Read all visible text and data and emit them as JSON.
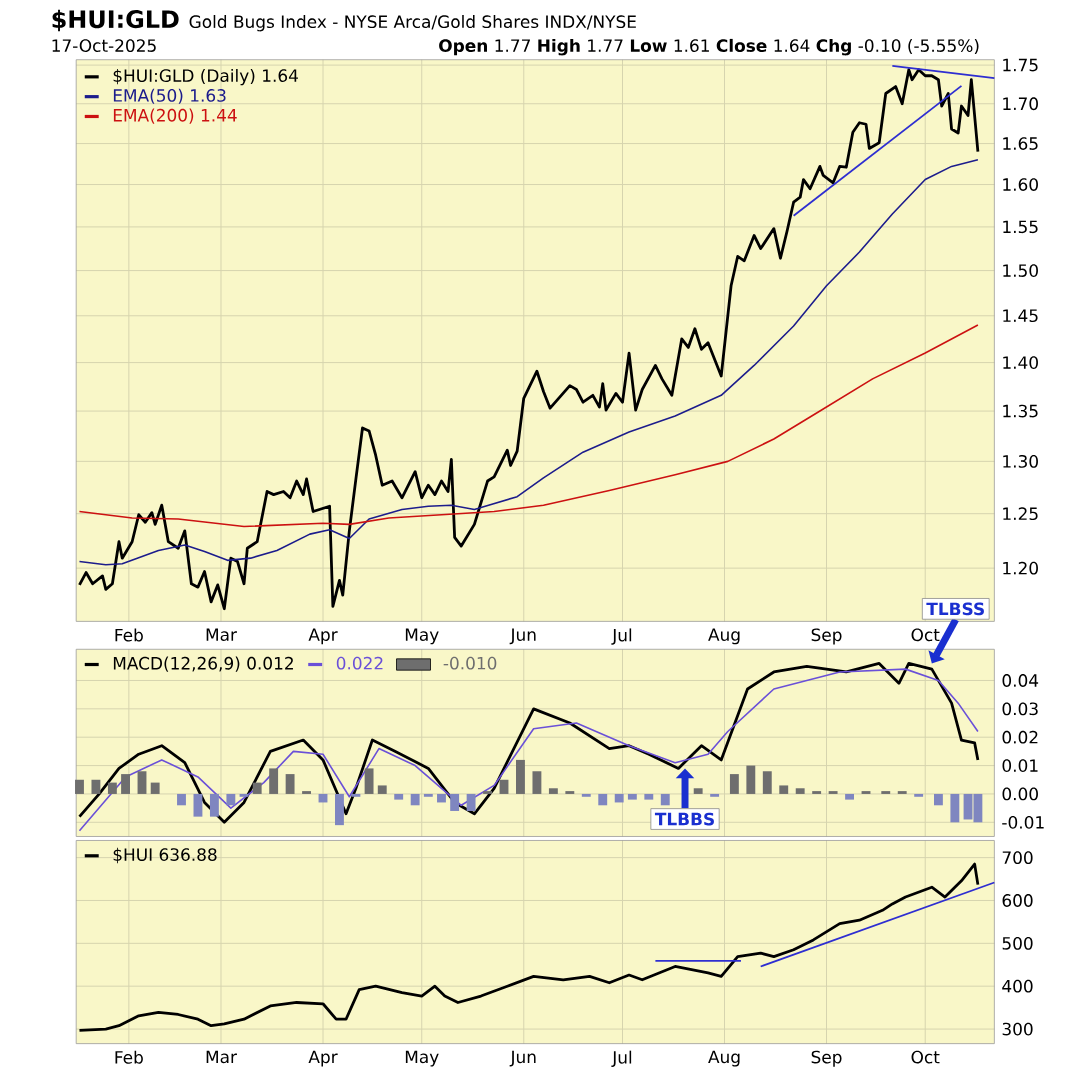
{
  "chart_data": [
    {
      "type": "line",
      "title": "$HUI:GLD",
      "subtitle": "Gold Bugs Index - NYSE Arca/Gold Shares  INDX/NYSE",
      "annotations": [
        "17-Oct-2025",
        "**Open** 1.77  **High** 1.77  **Low** 1.61  **Close** 1.64  **Chg** -0.10 (-5.55%)"
      ],
      "xlim": [
        "2025-01-16",
        "2025-10-22"
      ],
      "xticks": [
        {
          "value": "2025-02-01",
          "label": "Feb"
        },
        {
          "value": "2025-03-01",
          "label": "Mar"
        },
        {
          "value": "2025-04-01",
          "label": "Apr"
        },
        {
          "value": "2025-05-01",
          "label": "May"
        },
        {
          "value": "2025-06-01",
          "label": "Jun"
        },
        {
          "value": "2025-07-01",
          "label": "Jul"
        },
        {
          "value": "2025-08-01",
          "label": "Aug"
        },
        {
          "value": "2025-09-01",
          "label": "Sep"
        },
        {
          "value": "2025-10-01",
          "label": "Oct"
        }
      ],
      "ylim": [
        1.153,
        1.757
      ],
      "yticks": [
        {
          "value": 1.2,
          "label": "1.20"
        },
        1.25,
        {
          "value": 1.3,
          "label": "1.30"
        },
        1.35,
        {
          "value": 1.4,
          "label": "1.40"
        },
        1.45,
        {
          "value": 1.5,
          "label": "1.50"
        },
        1.55,
        {
          "value": 1.6,
          "label": "1.60"
        },
        1.65,
        {
          "value": 1.7,
          "label": "1.70"
        },
        1.75
      ],
      "log": true,
      "grid": true,
      "legend": "top left",
      "series": [
        {
          "name": "$HUI:GLD (Daily) 1.64",
          "color": "#000000",
          "x": [
            "2025-01-17",
            "2025-01-19",
            "2025-01-21",
            "2025-01-24",
            "2025-01-25",
            "2025-01-27",
            "2025-01-29",
            "2025-01-30",
            "2025-02-02",
            "2025-02-04",
            "2025-02-06",
            "2025-02-08",
            "2025-02-09",
            "2025-02-11",
            "2025-02-13",
            "2025-02-16",
            "2025-02-18",
            "2025-02-20",
            "2025-02-22",
            "2025-02-24",
            "2025-02-26",
            "2025-02-28",
            "2025-03-02",
            "2025-03-04",
            "2025-03-06",
            "2025-03-08",
            "2025-03-09",
            "2025-03-12",
            "2025-03-15",
            "2025-03-17",
            "2025-03-20",
            "2025-03-22",
            "2025-03-24",
            "2025-03-26",
            "2025-03-27",
            "2025-03-29",
            "2025-04-03",
            "2025-04-04",
            "2025-04-06",
            "2025-04-07",
            "2025-04-09",
            "2025-04-11",
            "2025-04-13",
            "2025-04-15",
            "2025-04-17",
            "2025-04-19",
            "2025-04-22",
            "2025-04-25",
            "2025-04-29",
            "2025-05-01",
            "2025-05-03",
            "2025-05-05",
            "2025-05-07",
            "2025-05-09",
            "2025-05-10",
            "2025-05-11",
            "2025-05-13",
            "2025-05-17",
            "2025-05-21",
            "2025-05-23",
            "2025-05-27",
            "2025-05-28",
            "2025-05-30",
            "2025-06-01",
            "2025-06-05",
            "2025-06-07",
            "2025-06-09",
            "2025-06-15",
            "2025-06-17",
            "2025-06-19",
            "2025-06-22",
            "2025-06-24",
            "2025-06-25",
            "2025-06-26",
            "2025-06-29",
            "2025-07-01",
            "2025-07-03",
            "2025-07-05",
            "2025-07-07",
            "2025-07-11",
            "2025-07-13",
            "2025-07-16",
            "2025-07-19",
            "2025-07-21",
            "2025-07-23",
            "2025-07-25",
            "2025-07-27",
            "2025-07-31",
            "2025-08-03",
            "2025-08-05",
            "2025-08-07",
            "2025-08-10",
            "2025-08-12",
            "2025-08-16",
            "2025-08-18",
            "2025-08-20",
            "2025-08-22",
            "2025-08-24",
            "2025-08-25",
            "2025-08-27",
            "2025-08-30",
            "2025-08-31",
            "2025-09-03",
            "2025-09-05",
            "2025-09-07",
            "2025-09-09",
            "2025-09-11",
            "2025-09-13",
            "2025-09-14",
            "2025-09-17",
            "2025-09-19",
            "2025-09-22",
            "2025-09-24",
            "2025-09-26",
            "2025-09-27",
            "2025-09-29",
            "2025-10-01",
            "2025-10-03",
            "2025-10-05",
            "2025-10-06",
            "2025-10-08",
            "2025-10-09",
            "2025-10-11",
            "2025-10-12",
            "2025-10-14",
            "2025-10-15",
            "2025-10-17"
          ],
          "values": [
            1.185,
            1.196,
            1.186,
            1.193,
            1.181,
            1.186,
            1.224,
            1.209,
            1.224,
            1.249,
            1.242,
            1.251,
            1.24,
            1.258,
            1.224,
            1.218,
            1.234,
            1.186,
            1.183,
            1.197,
            1.17,
            1.185,
            1.164,
            1.209,
            1.206,
            1.186,
            1.218,
            1.224,
            1.271,
            1.268,
            1.271,
            1.265,
            1.281,
            1.268,
            1.283,
            1.252,
            1.257,
            1.166,
            1.189,
            1.176,
            1.234,
            1.283,
            1.333,
            1.33,
            1.306,
            1.277,
            1.281,
            1.265,
            1.29,
            1.265,
            1.277,
            1.268,
            1.281,
            1.271,
            1.302,
            1.228,
            1.22,
            1.24,
            1.281,
            1.285,
            1.311,
            1.296,
            1.31,
            1.363,
            1.391,
            1.37,
            1.353,
            1.376,
            1.372,
            1.359,
            1.366,
            1.354,
            1.378,
            1.351,
            1.368,
            1.359,
            1.41,
            1.351,
            1.372,
            1.397,
            1.383,
            1.366,
            1.425,
            1.416,
            1.436,
            1.414,
            1.421,
            1.386,
            1.483,
            1.516,
            1.511,
            1.54,
            1.525,
            1.548,
            1.514,
            1.545,
            1.579,
            1.585,
            1.606,
            1.595,
            1.622,
            1.611,
            1.602,
            1.622,
            1.621,
            1.664,
            1.676,
            1.674,
            1.644,
            1.651,
            1.713,
            1.722,
            1.7,
            1.744,
            1.731,
            1.744,
            1.736,
            1.736,
            1.731,
            1.697,
            1.713,
            1.668,
            1.663,
            1.697,
            1.685,
            1.731,
            1.64
          ]
        },
        {
          "name": "EMA(50) 1.63",
          "color": "#1c1c8c",
          "x": [
            "2025-01-17",
            "2025-01-25",
            "2025-01-30",
            "2025-02-10",
            "2025-02-18",
            "2025-02-24",
            "2025-03-03",
            "2025-03-10",
            "2025-03-18",
            "2025-03-28",
            "2025-04-03",
            "2025-04-09",
            "2025-04-15",
            "2025-04-25",
            "2025-05-03",
            "2025-05-10",
            "2025-05-17",
            "2025-05-30",
            "2025-06-07",
            "2025-06-19",
            "2025-07-03",
            "2025-07-17",
            "2025-07-31",
            "2025-08-10",
            "2025-08-22",
            "2025-09-01",
            "2025-09-11",
            "2025-09-21",
            "2025-10-01",
            "2025-10-09",
            "2025-10-17"
          ],
          "values": [
            1.206,
            1.203,
            1.204,
            1.216,
            1.221,
            1.215,
            1.207,
            1.209,
            1.216,
            1.231,
            1.235,
            1.227,
            1.245,
            1.254,
            1.257,
            1.258,
            1.254,
            1.266,
            1.284,
            1.309,
            1.329,
            1.345,
            1.366,
            1.397,
            1.439,
            1.483,
            1.521,
            1.565,
            1.606,
            1.622,
            1.63
          ]
        },
        {
          "name": "EMA(200) 1.44",
          "color": "#cc1111",
          "x": [
            "2025-01-17",
            "2025-02-02",
            "2025-02-16",
            "2025-03-08",
            "2025-04-01",
            "2025-04-09",
            "2025-04-21",
            "2025-05-07",
            "2025-05-23",
            "2025-06-07",
            "2025-06-27",
            "2025-07-17",
            "2025-08-02",
            "2025-08-16",
            "2025-08-30",
            "2025-09-15",
            "2025-10-01",
            "2025-10-17"
          ],
          "values": [
            1.252,
            1.246,
            1.245,
            1.238,
            1.241,
            1.24,
            1.246,
            1.249,
            1.252,
            1.258,
            1.272,
            1.287,
            1.3,
            1.322,
            1.35,
            1.383,
            1.41,
            1.44
          ]
        },
        {
          "color": "#2e2ed1",
          "x": [
            "2025-09-21",
            "2025-10-22"
          ],
          "values": [
            1.749,
            1.733
          ]
        },
        {
          "color": "#2e2ed1",
          "x": [
            "2025-08-22",
            "2025-10-12"
          ],
          "values": [
            1.563,
            1.723
          ]
        }
      ]
    },
    {
      "type": "line",
      "annotations": [
        {
          "text": "TLBSS",
          "x": "2025-10-03",
          "y": 0.046
        },
        {
          "text": "TLBBS",
          "x": "2025-07-20",
          "y": 0.009
        }
      ],
      "xlim": [
        "2025-01-16",
        "2025-10-22"
      ],
      "xticks": [
        {
          "value": "2025-02-01",
          "label": null
        },
        {
          "value": "2025-03-01",
          "label": null
        },
        {
          "value": "2025-04-01",
          "label": null
        },
        {
          "value": "2025-05-01",
          "label": null
        },
        {
          "value": "2025-06-01",
          "label": null
        },
        {
          "value": "2025-07-01",
          "label": null
        },
        {
          "value": "2025-08-01",
          "label": null
        },
        {
          "value": "2025-09-01",
          "label": null
        },
        {
          "value": "2025-10-01",
          "label": null
        }
      ],
      "ylim": [
        -0.015,
        0.051
      ],
      "yticks": [
        -0.01,
        {
          "value": 0,
          "label": "0.00"
        },
        0.01,
        0.02,
        0.03,
        0.04
      ],
      "tick_labels": "y",
      "grid": true,
      "legend": "top left",
      "series": [
        {
          "name": "MACD(12,26,9) 0.012",
          "color": "#000000",
          "x": [
            "2025-01-17",
            "2025-01-23",
            "2025-01-29",
            "2025-02-04",
            "2025-02-11",
            "2025-02-18",
            "2025-02-24",
            "2025-03-02",
            "2025-03-08",
            "2025-03-16",
            "2025-03-26",
            "2025-04-01",
            "2025-04-08",
            "2025-04-11",
            "2025-04-16",
            "2025-04-23",
            "2025-05-03",
            "2025-05-11",
            "2025-05-17",
            "2025-05-23",
            "2025-06-04",
            "2025-06-15",
            "2025-06-27",
            "2025-07-03",
            "2025-07-09",
            "2025-07-18",
            "2025-07-25",
            "2025-07-31",
            "2025-08-08",
            "2025-08-16",
            "2025-08-26",
            "2025-09-07",
            "2025-09-17",
            "2025-09-23",
            "2025-09-26",
            "2025-10-03",
            "2025-10-09",
            "2025-10-12",
            "2025-10-16",
            "2025-10-17"
          ],
          "values": [
            -0.008,
            0,
            0.009,
            0.014,
            0.017,
            0.011,
            -0.003,
            -0.01,
            -0.003,
            0.015,
            0.019,
            0.012,
            -0.007,
            0.002,
            0.019,
            0.015,
            0.009,
            -0.003,
            -0.007,
            0.002,
            0.03,
            0.025,
            0.016,
            0.017,
            0.014,
            0.009,
            0.017,
            0.012,
            0.037,
            0.043,
            0.045,
            0.043,
            0.046,
            0.039,
            0.046,
            0.044,
            0.032,
            0.019,
            0.018,
            0.012
          ]
        },
        {
          "name": "0.022",
          "color": "#6a50d8",
          "x": [
            "2025-01-17",
            "2025-01-31",
            "2025-02-11",
            "2025-02-22",
            "2025-03-04",
            "2025-03-14",
            "2025-03-23",
            "2025-04-01",
            "2025-04-09",
            "2025-04-18",
            "2025-04-29",
            "2025-05-13",
            "2025-05-23",
            "2025-06-04",
            "2025-06-17",
            "2025-07-03",
            "2025-07-17",
            "2025-07-27",
            "2025-08-02",
            "2025-08-16",
            "2025-09-05",
            "2025-09-25",
            "2025-10-05",
            "2025-10-11",
            "2025-10-17"
          ],
          "values": [
            -0.013,
            0.006,
            0.012,
            0.006,
            -0.005,
            0.004,
            0.015,
            0.014,
            -0.001,
            0.016,
            0.01,
            -0.004,
            0.003,
            0.023,
            0.025,
            0.017,
            0.011,
            0.014,
            0.022,
            0.037,
            0.043,
            0.044,
            0.04,
            0.032,
            0.022
          ]
        },
        {
          "name": "-0.010",
          "type": "bar",
          "color": "#6e6e6e",
          "x": [
            "2025-01-17",
            "2025-01-22",
            "2025-01-27",
            "2025-01-31",
            "2025-02-05",
            "2025-02-09",
            "2025-02-13",
            "2025-02-17",
            "2025-02-22",
            "2025-02-27",
            "2025-03-04",
            "2025-03-08",
            "2025-03-12",
            "2025-03-17",
            "2025-03-22",
            "2025-03-27",
            "2025-04-01",
            "2025-04-06",
            "2025-04-11",
            "2025-04-15",
            "2025-04-19",
            "2025-04-24",
            "2025-04-29",
            "2025-05-03",
            "2025-05-07",
            "2025-05-11",
            "2025-05-16",
            "2025-05-21",
            "2025-05-26",
            "2025-05-31",
            "2025-06-05",
            "2025-06-10",
            "2025-06-15",
            "2025-06-20",
            "2025-06-25",
            "2025-06-30",
            "2025-07-04",
            "2025-07-09",
            "2025-07-14",
            "2025-07-19",
            "2025-07-24",
            "2025-07-29",
            "2025-08-04",
            "2025-08-09",
            "2025-08-14",
            "2025-08-19",
            "2025-08-24",
            "2025-08-29",
            "2025-09-03",
            "2025-09-08",
            "2025-09-13",
            "2025-09-19",
            "2025-09-24",
            "2025-09-29",
            "2025-10-05",
            "2025-10-10",
            "2025-10-14",
            "2025-10-17"
          ],
          "values": [
            0.005,
            0.005,
            0.004,
            0.007,
            0.008,
            0.004,
            0,
            -0.004,
            -0.008,
            -0.008,
            -0.004,
            -0.001,
            0.004,
            0.009,
            0.007,
            0.001,
            -0.003,
            -0.011,
            -0.001,
            0.009,
            0.003,
            -0.002,
            -0.004,
            -0.001,
            -0.003,
            -0.006,
            -0.006,
            0.001,
            0.005,
            0.012,
            0.008,
            0.002,
            0.001,
            -0.001,
            -0.004,
            -0.003,
            -0.002,
            -0.002,
            -0.004,
            0,
            0.002,
            -0.001,
            0.007,
            0.01,
            0.008,
            0.003,
            0.002,
            0.001,
            0.001,
            -0.002,
            0.001,
            0.001,
            0.001,
            -0.001,
            -0.004,
            -0.01,
            -0.009,
            -0.01
          ],
          "colors": [
            "#6e6e6e",
            "#6e6e6e",
            "#6e6e6e",
            "#6e6e6e",
            "#6e6e6e",
            "#6e6e6e",
            "#6e6e6e",
            "#7f86c0",
            "#7f86c0",
            "#7f86c0",
            "#7f86c0",
            "#7f86c0",
            "#6e6e6e",
            "#6e6e6e",
            "#6e6e6e",
            "#6e6e6e",
            "#7f86c0",
            "#7f86c0",
            "#7f86c0",
            "#6e6e6e",
            "#6e6e6e",
            "#7f86c0",
            "#7f86c0",
            "#7f86c0",
            "#7f86c0",
            "#7f86c0",
            "#7f86c0",
            "#6e6e6e",
            "#6e6e6e",
            "#6e6e6e",
            "#6e6e6e",
            "#6e6e6e",
            "#6e6e6e",
            "#7f86c0",
            "#7f86c0",
            "#7f86c0",
            "#7f86c0",
            "#7f86c0",
            "#7f86c0",
            "#6e6e6e",
            "#6e6e6e",
            "#7f86c0",
            "#6e6e6e",
            "#6e6e6e",
            "#6e6e6e",
            "#6e6e6e",
            "#6e6e6e",
            "#6e6e6e",
            "#6e6e6e",
            "#7f86c0",
            "#6e6e6e",
            "#6e6e6e",
            "#6e6e6e",
            "#7f86c0",
            "#7f86c0",
            "#7f86c0",
            "#7f86c0",
            "#7f86c0"
          ]
        }
      ]
    },
    {
      "type": "line",
      "xlim": [
        "2025-01-16",
        "2025-10-22"
      ],
      "xticks": [
        {
          "value": "2025-02-01",
          "label": "Feb"
        },
        {
          "value": "2025-03-01",
          "label": "Mar"
        },
        {
          "value": "2025-04-01",
          "label": "Apr"
        },
        {
          "value": "2025-05-01",
          "label": "May"
        },
        {
          "value": "2025-06-01",
          "label": "Jun"
        },
        {
          "value": "2025-07-01",
          "label": "Jul"
        },
        {
          "value": "2025-08-01",
          "label": "Aug"
        },
        {
          "value": "2025-09-01",
          "label": "Sep"
        },
        {
          "value": "2025-10-01",
          "label": "Oct"
        }
      ],
      "ylim": [
        266,
        740
      ],
      "yticks": [
        300,
        400,
        500,
        600,
        700
      ],
      "grid": true,
      "legend": "top left",
      "series": [
        {
          "name": "$HUI 636.88",
          "color": "#000000",
          "x": [
            "2025-01-17",
            "2025-01-25",
            "2025-01-29",
            "2025-02-04",
            "2025-02-10",
            "2025-02-16",
            "2025-02-22",
            "2025-02-26",
            "2025-03-02",
            "2025-03-08",
            "2025-03-16",
            "2025-03-24",
            "2025-04-01",
            "2025-04-05",
            "2025-04-08",
            "2025-04-12",
            "2025-04-17",
            "2025-04-25",
            "2025-05-01",
            "2025-05-05",
            "2025-05-08",
            "2025-05-12",
            "2025-05-19",
            "2025-05-27",
            "2025-06-04",
            "2025-06-13",
            "2025-06-21",
            "2025-06-27",
            "2025-07-03",
            "2025-07-07",
            "2025-07-17",
            "2025-07-27",
            "2025-07-31",
            "2025-08-05",
            "2025-08-12",
            "2025-08-16",
            "2025-08-22",
            "2025-08-28",
            "2025-09-05",
            "2025-09-11",
            "2025-09-18",
            "2025-09-21",
            "2025-09-25",
            "2025-10-03",
            "2025-10-07",
            "2025-10-12",
            "2025-10-16",
            "2025-10-17"
          ],
          "values": [
            297,
            300,
            308,
            331,
            339,
            334,
            323,
            308,
            312,
            323,
            354,
            362,
            359,
            323,
            323,
            392,
            400,
            385,
            377,
            400,
            377,
            362,
            377,
            400,
            423,
            415,
            423,
            408,
            426,
            415,
            446,
            431,
            423,
            469,
            477,
            469,
            485,
            508,
            546,
            554,
            577,
            592,
            608,
            631,
            608,
            646,
            685,
            637
          ]
        },
        {
          "color": "#2e2ed1",
          "x": [
            "2025-07-11",
            "2025-08-06"
          ],
          "values": [
            459,
            459
          ]
        },
        {
          "color": "#2e2ed1",
          "x": [
            "2025-08-12",
            "2025-10-22"
          ],
          "values": [
            446,
            642
          ]
        }
      ]
    }
  ]
}
